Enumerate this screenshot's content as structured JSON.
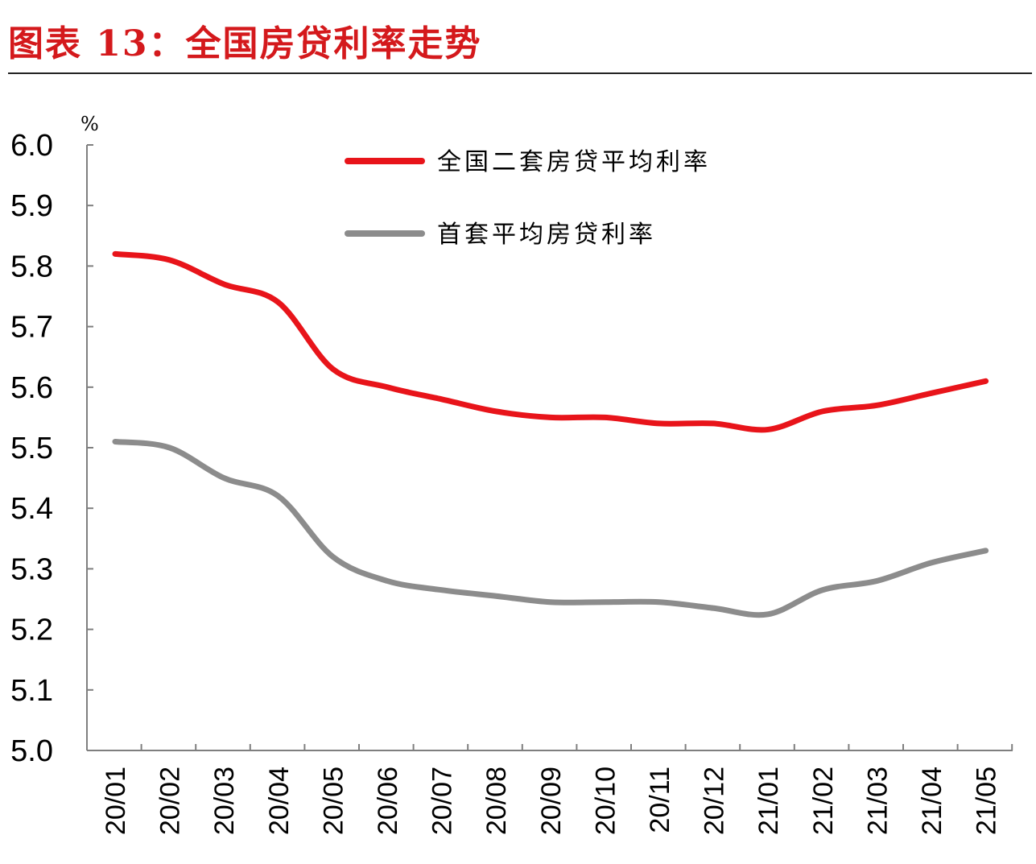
{
  "header": {
    "title": "图表 13：全国房贷利率走势"
  },
  "chart_data": {
    "type": "line",
    "title": "图表 13：全国房贷利率走势",
    "ylabel": "%",
    "ylim": [
      5.0,
      6.0
    ],
    "yticks": [
      "6.0",
      "5.9",
      "5.8",
      "5.7",
      "5.6",
      "5.5",
      "5.4",
      "5.3",
      "5.2",
      "5.1",
      "5.0"
    ],
    "categories": [
      "20/01",
      "20/02",
      "20/03",
      "20/04",
      "20/05",
      "20/06",
      "20/07",
      "20/08",
      "20/09",
      "20/10",
      "20/11",
      "20/12",
      "21/01",
      "21/02",
      "21/03",
      "21/04",
      "21/05"
    ],
    "series": [
      {
        "name": "全国二套房贷平均利率",
        "color": "#e8141a",
        "values": [
          5.82,
          5.81,
          5.77,
          5.74,
          5.63,
          5.6,
          5.58,
          5.56,
          5.55,
          5.55,
          5.54,
          5.54,
          5.53,
          5.56,
          5.57,
          5.59,
          5.61
        ]
      },
      {
        "name": "首套平均房贷利率",
        "color": "#8c8c8c",
        "values": [
          5.51,
          5.5,
          5.45,
          5.42,
          5.32,
          5.28,
          5.265,
          5.255,
          5.245,
          5.245,
          5.245,
          5.235,
          5.225,
          5.265,
          5.28,
          5.31,
          5.33
        ]
      }
    ],
    "grid": false,
    "legend": "top-center"
  }
}
